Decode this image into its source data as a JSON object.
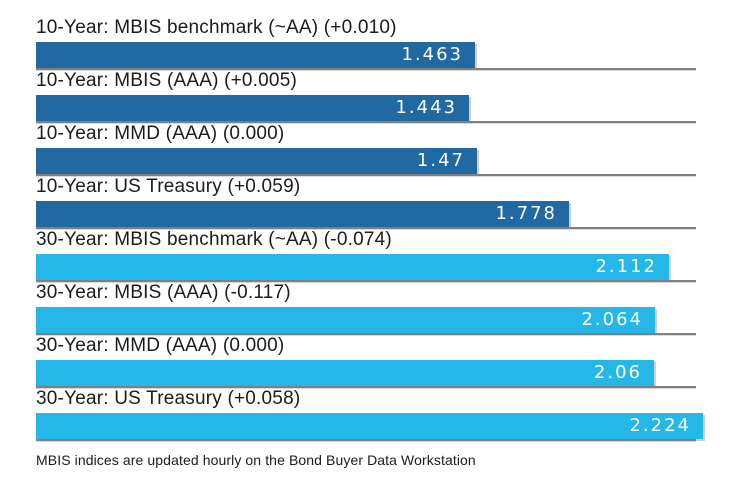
{
  "chart_data": {
    "type": "bar",
    "orientation": "horizontal",
    "xlim": [
      0,
      2.224
    ],
    "grid": false,
    "legend": "none",
    "bars": [
      {
        "label": "10-Year: MBIS benchmark (~AA) (+0.010)",
        "value": 1.463,
        "display_value": "1.463",
        "group": "10-year"
      },
      {
        "label": "10-Year: MBIS (AAA) (+0.005)",
        "value": 1.443,
        "display_value": "1.443",
        "group": "10-year"
      },
      {
        "label": "10-Year: MMD (AAA) (0.000)",
        "value": 1.47,
        "display_value": "1.47",
        "group": "10-year"
      },
      {
        "label": "10-Year: US Treasury (+0.059)",
        "value": 1.778,
        "display_value": "1.778",
        "group": "10-year"
      },
      {
        "label": "30-Year: MBIS benchmark (~AA) (-0.074)",
        "value": 2.112,
        "display_value": "2.112",
        "group": "30-year"
      },
      {
        "label": "30-Year: MBIS (AAA) (-0.117)",
        "value": 2.064,
        "display_value": "2.064",
        "group": "30-year"
      },
      {
        "label": "30-Year: MMD (AAA) (0.000)",
        "value": 2.06,
        "display_value": "2.06",
        "group": "30-year"
      },
      {
        "label": "30-Year: US Treasury (+0.058)",
        "value": 2.224,
        "display_value": "2.224",
        "group": "30-year"
      }
    ],
    "colors": {
      "10-year": "#2069a2",
      "30-year": "#25b7e8",
      "value_text": "#ffffff",
      "label_text": "#1b1b1b",
      "divider": "#7f7f7f"
    }
  },
  "footer": {
    "note": "MBIS indices are updated hourly on the Bond Buyer Data Workstation"
  }
}
